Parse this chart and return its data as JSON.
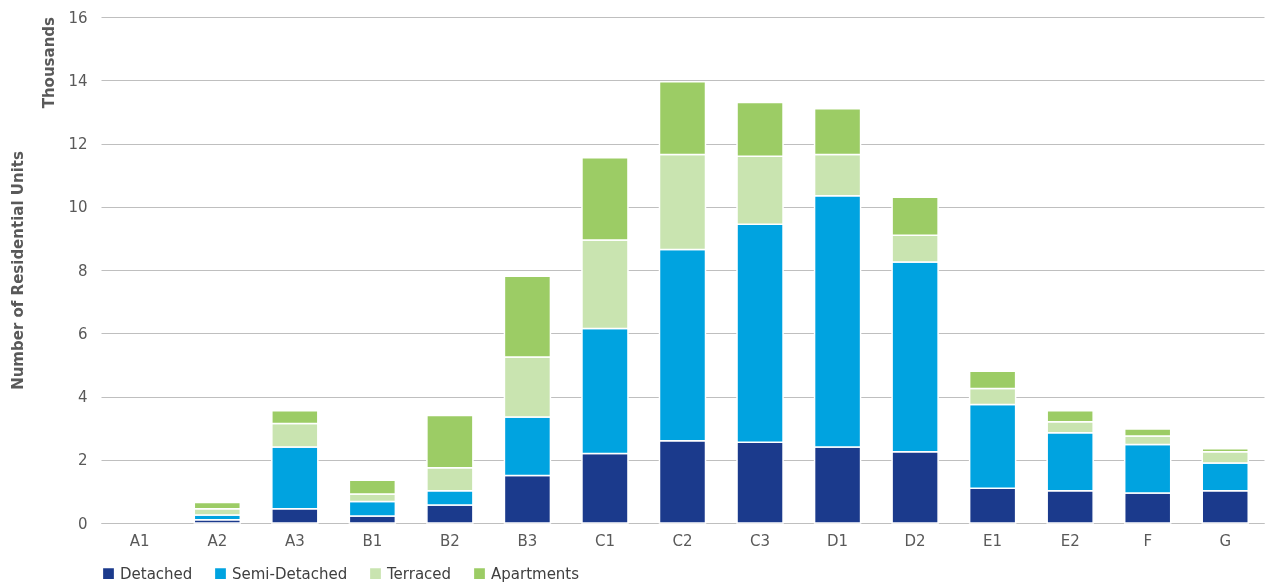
{
  "chart_data": {
    "type": "bar",
    "stacked": true,
    "ylabel": "Number of Residential Units",
    "annotations": [
      "Thousands"
    ],
    "categories": [
      "A1",
      "A2",
      "A3",
      "B1",
      "B2",
      "B3",
      "C1",
      "C2",
      "C3",
      "D1",
      "D2",
      "E1",
      "E2",
      "F",
      "G"
    ],
    "series": [
      {
        "name": "Detached",
        "color": "#1b3a8c",
        "values": [
          null,
          0.1,
          0.45,
          0.22,
          0.57,
          1.5,
          2.2,
          2.6,
          2.55,
          2.4,
          2.25,
          1.1,
          1.02,
          0.95,
          1.02
        ]
      },
      {
        "name": "Semi-Detached",
        "color": "#00a3e0",
        "values": [
          null,
          0.15,
          1.95,
          0.46,
          0.45,
          1.85,
          3.95,
          6.05,
          6.9,
          7.95,
          6.0,
          2.65,
          1.83,
          1.53,
          0.88
        ]
      },
      {
        "name": "Terraced",
        "color": "#c9e4b0",
        "values": [
          null,
          0.2,
          0.75,
          0.24,
          0.73,
          1.9,
          2.8,
          3.0,
          2.15,
          1.3,
          0.85,
          0.5,
          0.35,
          0.27,
          0.35
        ]
      },
      {
        "name": "Apartments",
        "color": "#9ccc65",
        "values": [
          null,
          0.2,
          0.4,
          0.43,
          1.65,
          2.55,
          2.6,
          2.3,
          1.7,
          1.45,
          1.2,
          0.55,
          0.35,
          0.22,
          0.1
        ]
      }
    ],
    "ylim": [
      0,
      16
    ],
    "yticks": [
      0,
      2,
      4,
      6,
      8,
      10,
      12,
      14,
      16
    ],
    "grid": "y",
    "legend": "bottom"
  }
}
